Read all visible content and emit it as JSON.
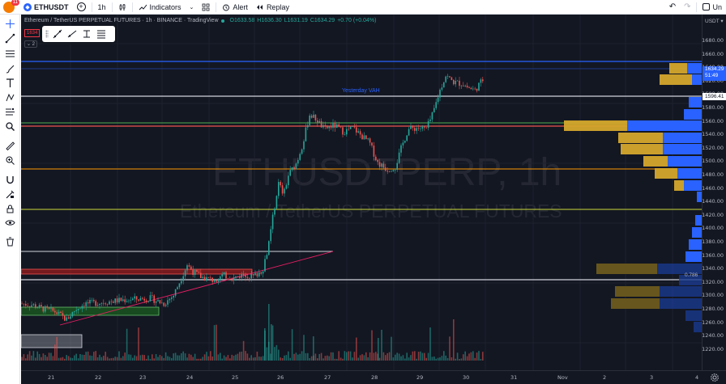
{
  "topbar": {
    "avatar_badge": "11",
    "symbol": "ETHUSDT",
    "interval": "1h",
    "indicators_label": "Indicators",
    "alert_label": "Alert",
    "replay_label": "Replay",
    "right_partial": "Un"
  },
  "legend": {
    "title": "Ethereum / TetherUS PERPETUAL FUTURES · 1h · BINANCE · TradingView",
    "open": "O1633.58",
    "high": "H1636.30",
    "low": "L1631.19",
    "close": "C1634.29",
    "change": "+0.70 (+0.04%)"
  },
  "price_badge": "1634",
  "collapse": "⌄ 2",
  "watermark": {
    "line1": "ETHUSDTPERP, 1h",
    "line2": "Ethereum / TetherUS PERPETUAL FUTURES"
  },
  "annotations": {
    "yesterday_vah": "Yesterday VAH",
    "fib_level": "0.786"
  },
  "price_axis": {
    "currency": "USDT ▾",
    "labels": [
      "1680.00",
      "1660.00",
      "1640.00",
      "1620.00",
      "1600.00",
      "1580.00",
      "1560.00",
      "1540.00",
      "1520.00",
      "1500.00",
      "1480.00",
      "1460.00",
      "1440.00",
      "1420.00",
      "1400.00",
      "1380.00",
      "1360.00",
      "1340.00",
      "1320.00",
      "1300.00",
      "1280.00",
      "1260.00",
      "1240.00",
      "1220.00"
    ],
    "current_price": "1634.29",
    "countdown": "51:49",
    "vah_price": "1596.41"
  },
  "time_axis": {
    "labels": [
      "21",
      "22",
      "23",
      "24",
      "25",
      "26",
      "27",
      "28",
      "29",
      "30",
      "31",
      "Nov",
      "2",
      "3",
      "4"
    ]
  },
  "colors": {
    "up": "#26a69a",
    "down": "#ef5350",
    "background": "#131722",
    "accent": "#2962ff"
  },
  "left_toolbar_icons": [
    "crosshair-icon",
    "trendline-icon",
    "fib-icon",
    "brush-icon",
    "text-icon",
    "pattern-icon",
    "forecast-icon",
    "zoom-icon",
    "ruler-icon",
    "zoom-in-icon",
    "magnet-icon",
    "lock-drawings-icon",
    "lock-icon",
    "eye-icon",
    "trash-icon"
  ],
  "chart_data": {
    "type": "candlestick",
    "symbol": "ETHUSDTPERP",
    "interval": "1h",
    "ylim": [
      1210,
      1700
    ],
    "x": [
      "21",
      "22",
      "23",
      "24",
      "25",
      "26",
      "27",
      "28",
      "29",
      "30"
    ],
    "close": [
      1300,
      1292,
      1305,
      1330,
      1352,
      1350,
      1560,
      1545,
      1510,
      1620
    ],
    "volume_profile_levels": [
      1640,
      1620,
      1600,
      1580,
      1560,
      1540,
      1520,
      1500,
      1480,
      1460,
      1440,
      1420,
      1400,
      1380,
      1360,
      1340,
      1320,
      1300,
      1280,
      1260
    ],
    "horizontal_levels": [
      1645,
      1636,
      1596.41,
      1562,
      1557,
      1510,
      1440,
      1369,
      1340,
      1328
    ],
    "last_price": 1634.29
  }
}
